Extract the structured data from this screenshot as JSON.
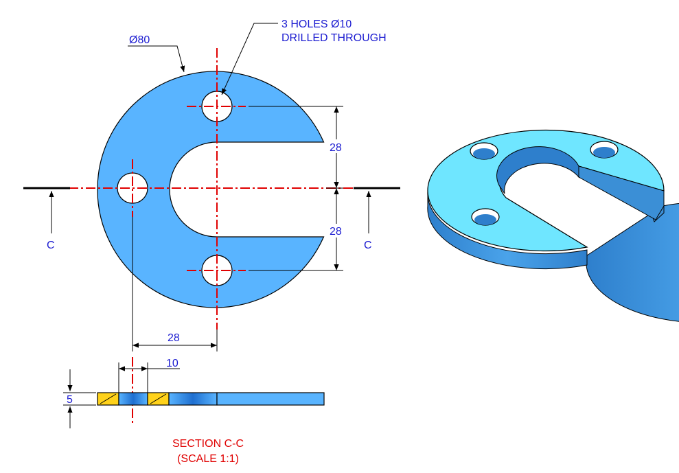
{
  "annotations": {
    "diameter_outer": "Ø80",
    "holes_line1": "3 HOLES  Ø10",
    "holes_line2": "DRILLED THROUGH",
    "dim_vertical_upper": "28",
    "dim_vertical_lower": "28",
    "dim_horizontal": "28",
    "dim_hole_width": "10",
    "dim_thickness": "5",
    "section_label_left": "C",
    "section_label_right": "C",
    "section_title": "SECTION C-C",
    "section_scale": "(SCALE 1:1)"
  },
  "colors": {
    "part_fill": "#59b4ff",
    "part_iso_top": "#6fe6ff",
    "part_iso_side": "#3b8fd6",
    "hatch_fill": "#ffd21a",
    "centerline": "#e00000",
    "dimension_text": "#1a1ad0"
  }
}
